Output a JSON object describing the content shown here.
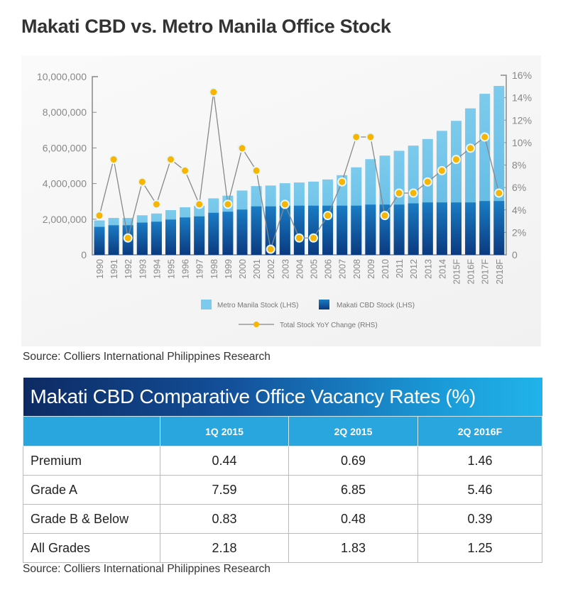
{
  "title": "Makati CBD vs. Metro Manila Office Stock",
  "chart_data": {
    "type": "bar",
    "title": "Makati CBD vs. Metro Manila Office Stock",
    "categories": [
      "1990",
      "1991",
      "1992",
      "1993",
      "1994",
      "1995",
      "1996",
      "1997",
      "1998",
      "1999",
      "2000",
      "2001",
      "2002",
      "2003",
      "2004",
      "2005",
      "2006",
      "2007",
      "2008",
      "2009",
      "2010",
      "2011",
      "2012",
      "2013",
      "2014",
      "2015F",
      "2016F",
      "2017F",
      "2018F"
    ],
    "series": [
      {
        "name": "Metro Manila Stock (LHS)",
        "type": "bar",
        "axis": "left",
        "color": "#6fc3e8",
        "values": [
          1930000,
          2070000,
          2070000,
          2220000,
          2320000,
          2510000,
          2670000,
          2760000,
          3170000,
          3320000,
          3610000,
          3860000,
          3890000,
          4020000,
          4060000,
          4110000,
          4230000,
          4470000,
          4910000,
          5370000,
          5570000,
          5840000,
          6130000,
          6500000,
          6960000,
          7520000,
          8220000,
          9040000,
          9480000
        ]
      },
      {
        "name": "Makati CBD Stock (LHS)",
        "type": "bar",
        "axis": "left",
        "color": "#1260a8",
        "values": [
          1570000,
          1660000,
          1660000,
          1810000,
          1860000,
          1980000,
          2100000,
          2160000,
          2360000,
          2420000,
          2540000,
          2720000,
          2720000,
          2760000,
          2760000,
          2760000,
          2760000,
          2760000,
          2760000,
          2820000,
          2820000,
          2820000,
          2890000,
          2940000,
          2940000,
          2940000,
          2940000,
          3020000,
          3020000
        ]
      },
      {
        "name": "Total Stock YoY Change (RHS)",
        "type": "line",
        "axis": "right",
        "color": "#f7b500",
        "values": [
          3.5,
          8.5,
          1.5,
          6.5,
          4.5,
          8.5,
          7.5,
          4.5,
          14.5,
          4.5,
          9.5,
          7.5,
          0.5,
          4.5,
          1.5,
          1.5,
          3.5,
          6.5,
          10.5,
          10.5,
          3.5,
          5.5,
          5.5,
          6.5,
          7.5,
          8.5,
          9.5,
          10.5,
          5.5
        ]
      }
    ],
    "left_axis": {
      "ylim": [
        0,
        10000000
      ],
      "ticks": [
        "0",
        "2,000,000",
        "4,000,000",
        "6,000,000",
        "8,000,000",
        "10,000,000"
      ]
    },
    "right_axis": {
      "ylim": [
        0,
        16
      ],
      "ticks": [
        "0",
        "2%",
        "4%",
        "6%",
        "8%",
        "10%",
        "12%",
        "14%",
        "16%"
      ]
    },
    "legend_position": "bottom",
    "grid": false
  },
  "chart_source": "Source: Colliers International Philippines Research",
  "table": {
    "title": "Makati CBD Comparative Office Vacancy Rates (%)",
    "columns": [
      "",
      "1Q 2015",
      "2Q 2015",
      "2Q 2016F"
    ],
    "rows": [
      [
        "Premium",
        "0.44",
        "0.69",
        "1.46"
      ],
      [
        "Grade A",
        "7.59",
        "6.85",
        "5.46"
      ],
      [
        "Grade B & Below",
        "0.83",
        "0.48",
        "0.39"
      ],
      [
        "All Grades",
        "2.18",
        "1.83",
        "1.25"
      ]
    ]
  },
  "table_source": "Source: Colliers International Philippines Research"
}
